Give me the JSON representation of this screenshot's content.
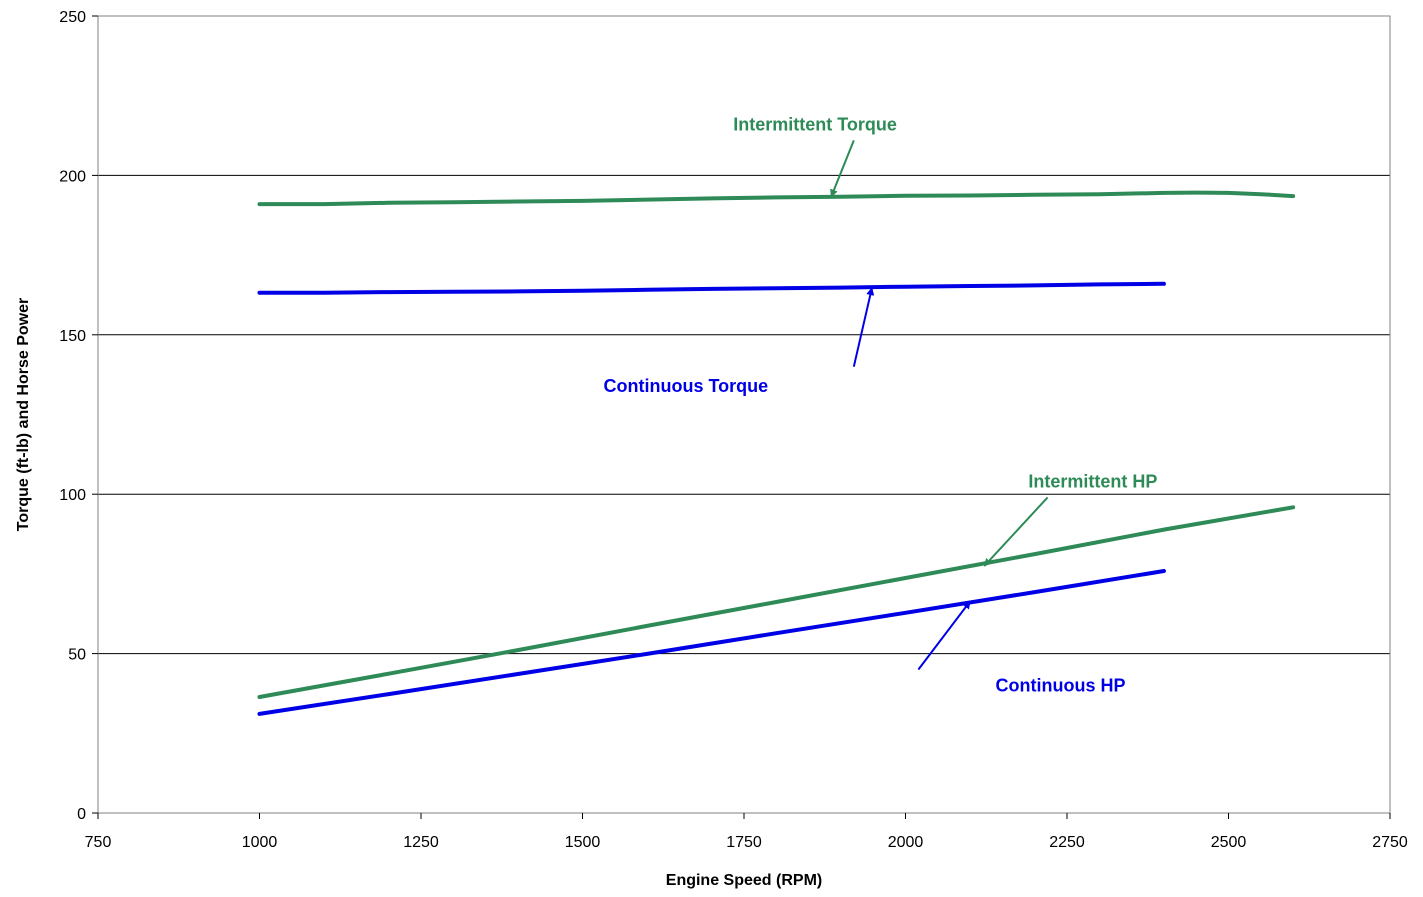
{
  "chart_data": {
    "type": "line",
    "title": "",
    "xlabel": "Engine Speed (RPM)",
    "ylabel": "Torque (ft-lb) and Horse Power",
    "xlim": [
      750,
      2750
    ],
    "ylim": [
      0,
      250
    ],
    "xticks": [
      750,
      1000,
      1250,
      1500,
      1750,
      2000,
      2250,
      2500,
      2750
    ],
    "yticks": [
      0,
      50,
      100,
      150,
      200,
      250
    ],
    "grid": "horizontal",
    "legend": "none",
    "series": [
      {
        "name": "Intermittent Torque",
        "color": "#2e8b57",
        "x": [
          1000,
          1100,
          1200,
          1300,
          1400,
          1500,
          1600,
          1700,
          1800,
          1900,
          2000,
          2100,
          2200,
          2300,
          2400,
          2450,
          2500,
          2550,
          2600
        ],
        "y": [
          191,
          191,
          191.4,
          191.6,
          191.8,
          192,
          192.4,
          192.8,
          193.1,
          193.3,
          193.6,
          193.7,
          193.9,
          194.1,
          194.5,
          194.6,
          194.5,
          194.1,
          193.5
        ]
      },
      {
        "name": "Continuous Torque",
        "color": "#0000e6",
        "x": [
          1000,
          1100,
          1200,
          1300,
          1400,
          1500,
          1600,
          1700,
          1800,
          1900,
          2000,
          2100,
          2200,
          2300,
          2400
        ],
        "y": [
          163.2,
          163.2,
          163.4,
          163.5,
          163.6,
          163.8,
          164.1,
          164.4,
          164.6,
          164.8,
          165.1,
          165.3,
          165.5,
          165.8,
          166
        ]
      },
      {
        "name": "Intermittent HP",
        "color": "#2e8b57",
        "x": [
          1000,
          1200,
          1400,
          1600,
          1800,
          2000,
          2200,
          2400,
          2600
        ],
        "y": [
          36.4,
          43.7,
          51.1,
          58.7,
          66.2,
          73.7,
          81.2,
          88.9,
          95.9
        ]
      },
      {
        "name": "Continuous HP",
        "color": "#0000e6",
        "x": [
          1000,
          1200,
          1400,
          1600,
          1800,
          2000,
          2200,
          2400
        ],
        "y": [
          31.1,
          37.3,
          43.6,
          49.9,
          56.4,
          62.8,
          69.3,
          75.9
        ]
      }
    ],
    "annotations": [
      {
        "text": "Intermittent Torque",
        "color": "#2e8b57",
        "label_at": [
          1860,
          216
        ],
        "arrow_from": [
          1920,
          211
        ],
        "arrow_to": [
          1885,
          193.3
        ]
      },
      {
        "text": "Continuous Torque",
        "color": "#0000e6",
        "label_at": [
          1660,
          134
        ],
        "arrow_from": [
          1920,
          140
        ],
        "arrow_to": [
          1948,
          164.7
        ]
      },
      {
        "text": "Intermittent HP",
        "color": "#2e8b57",
        "label_at": [
          2290,
          104
        ],
        "arrow_from": [
          2220,
          99
        ],
        "arrow_to": [
          2122,
          77.5
        ]
      },
      {
        "text": "Continuous HP",
        "color": "#0000e6",
        "label_at": [
          2240,
          40
        ],
        "arrow_from": [
          2020,
          45
        ],
        "arrow_to": [
          2100,
          66.4
        ]
      }
    ]
  }
}
